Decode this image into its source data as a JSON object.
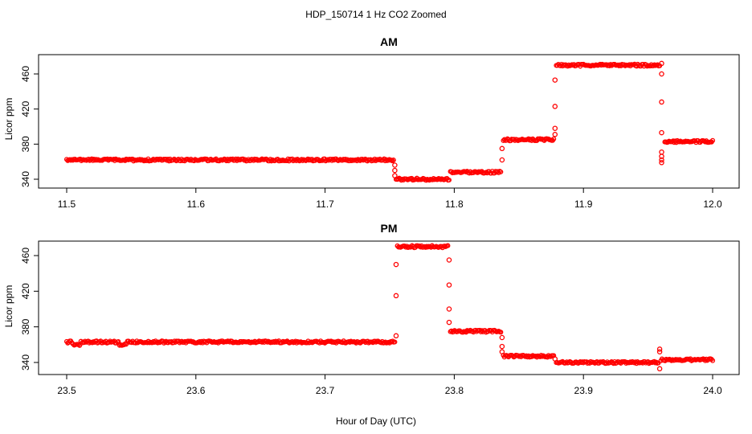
{
  "figure": {
    "title": "HDP_150714  1 Hz CO2 Zoomed",
    "xlabel": "Hour of Day (UTC)"
  },
  "chart_data": [
    {
      "type": "scatter",
      "title": "AM",
      "xlabel": "",
      "ylabel": "Licor ppm",
      "xlim": [
        11.5,
        12.0
      ],
      "ylim": [
        335,
        475
      ],
      "x_ticks": [
        "11.5",
        "11.6",
        "11.7",
        "11.8",
        "11.9",
        "12.0"
      ],
      "y_ticks": [
        "340",
        "380",
        "420",
        "460"
      ],
      "grid": false,
      "marker": "open-circle",
      "color": "#ff0000",
      "segments": [
        {
          "x": [
            11.5,
            11.753
          ],
          "y": 362
        },
        {
          "x": [
            11.755,
            11.796
          ],
          "y": 340
        },
        {
          "x": [
            11.797,
            11.836
          ],
          "y": 348
        },
        {
          "x": [
            11.838,
            11.877
          ],
          "y": 385
        },
        {
          "x": [
            11.879,
            11.959
          ],
          "y": 470
        },
        {
          "x": [
            11.963,
            12.0
          ],
          "y": 383
        }
      ],
      "transitions": [
        {
          "x": 11.754,
          "y": [
            356,
            350,
            344
          ]
        },
        {
          "x": 11.837,
          "y": [
            362,
            375
          ]
        },
        {
          "x": 11.878,
          "y": [
            453,
            423,
            398,
            391
          ]
        },
        {
          "x": 11.9605,
          "y": [
            472,
            460,
            428,
            393,
            371,
            366,
            362,
            359
          ]
        }
      ]
    },
    {
      "type": "scatter",
      "title": "PM",
      "xlabel": "",
      "ylabel": "Licor ppm",
      "xlim": [
        23.5,
        24.0
      ],
      "ylim": [
        330,
        475
      ],
      "x_ticks": [
        "23.5",
        "23.6",
        "23.7",
        "23.8",
        "23.9",
        "24.0"
      ],
      "y_ticks": [
        "340",
        "380",
        "420",
        "460"
      ],
      "grid": false,
      "marker": "open-circle",
      "color": "#ff0000",
      "segments": [
        {
          "x": [
            23.5,
            23.504
          ],
          "y": 363
        },
        {
          "x": [
            23.505,
            23.51
          ],
          "y": 360
        },
        {
          "x": [
            23.511,
            23.54
          ],
          "y": 363
        },
        {
          "x": [
            23.541,
            23.546
          ],
          "y": 360
        },
        {
          "x": [
            23.547,
            23.754
          ],
          "y": 363
        },
        {
          "x": [
            23.756,
            23.795
          ],
          "y": 470
        },
        {
          "x": [
            23.797,
            23.836
          ],
          "y": 375
        },
        {
          "x": [
            23.838,
            23.877
          ],
          "y": 347
        },
        {
          "x": [
            23.879,
            23.958
          ],
          "y": 340
        },
        {
          "x": [
            23.96,
            24.0
          ],
          "y": 343
        }
      ],
      "transitions": [
        {
          "x": 23.755,
          "y": [
            370,
            415,
            450
          ]
        },
        {
          "x": 23.796,
          "y": [
            455,
            427,
            400,
            385
          ]
        },
        {
          "x": 23.837,
          "y": [
            368,
            358,
            352
          ]
        },
        {
          "x": 23.878,
          "y": [
            344
          ]
        },
        {
          "x": 23.959,
          "y": [
            333,
            352,
            355
          ]
        }
      ]
    }
  ]
}
